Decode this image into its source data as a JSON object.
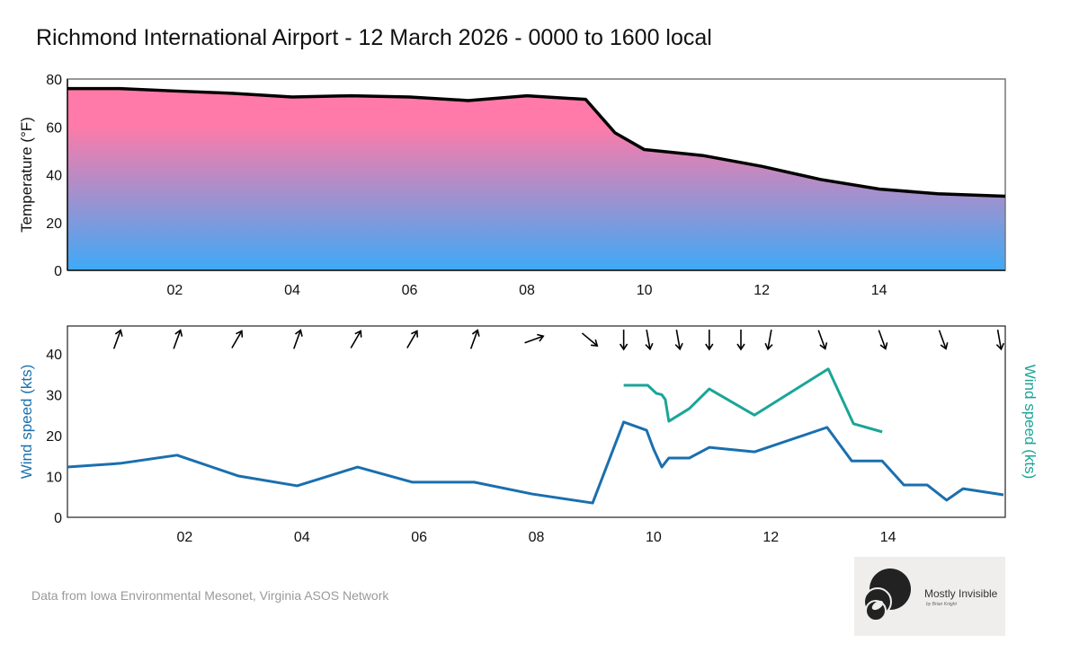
{
  "title": "Richmond International Airport - 12 March 2026 - 0000 to 1600 local",
  "source": "Data from Iowa Environmental Mesonet, Virginia ASOS Network",
  "logo": {
    "name": "Mostly Invisible",
    "byline": "by Brian Knight"
  },
  "colors": {
    "temp_top": "#ff7aa8",
    "temp_bottom": "#3ea9f6",
    "wind": "#1a6fae",
    "gust": "#1aa597"
  },
  "chart_data": [
    {
      "type": "area",
      "ylabel": "Temperature (°F)",
      "xlim": [
        0.17,
        16.15
      ],
      "ylim": [
        0,
        80
      ],
      "yticks": [
        "0",
        "20",
        "40",
        "60",
        "80"
      ],
      "xticks": [
        "02",
        "04",
        "06",
        "08",
        "10",
        "12",
        "14"
      ],
      "series": [
        {
          "x": [
            0.17,
            1.06,
            2,
            3,
            4,
            5,
            6,
            7,
            8,
            9,
            9.5,
            10,
            11,
            12,
            13,
            14,
            15,
            16.15
          ],
          "y": [
            76,
            76,
            75,
            74,
            72.5,
            73,
            72.5,
            71,
            73,
            71.5,
            57.5,
            50.5,
            48,
            43.5,
            38,
            34,
            32,
            31
          ]
        }
      ]
    },
    {
      "type": "line",
      "ylabel": "Wind speed (kts)",
      "ylabel_right": "Wind speed (kts)",
      "xlim": [
        0,
        16
      ],
      "ylim": [
        0,
        46.8
      ],
      "yticks": [
        "0",
        "10",
        "20",
        "30",
        "40"
      ],
      "xticks": [
        "02",
        "04",
        "06",
        "08",
        "10",
        "12",
        "14"
      ],
      "series": [
        {
          "axis": "left",
          "x": [
            0,
            0.9,
            1.87,
            2.92,
            3.92,
            4.95,
            5.88,
            6.94,
            7.93,
            8.96,
            9.49,
            9.88,
            10.0,
            10.14,
            10.26,
            10.61,
            10.95,
            11.72,
            12.96,
            13.38,
            13.9,
            14.27,
            14.67,
            15.0,
            15.28,
            15.97
          ],
          "y": [
            12.3,
            13.2,
            15.2,
            10.1,
            7.7,
            12.3,
            8.6,
            8.6,
            5.7,
            3.5,
            23.3,
            21.3,
            16.7,
            12.3,
            14.5,
            14.5,
            17.1,
            16,
            22,
            13.8,
            13.8,
            7.9,
            7.9,
            4.2,
            7,
            5.5
          ]
        },
        {
          "axis": "right",
          "x": [
            9.49,
            9.9,
            10.05,
            10.14,
            10.2,
            10.26,
            10.61,
            10.95,
            11.72,
            12.98,
            13.41,
            13.9
          ],
          "y": [
            32.3,
            32.3,
            30.3,
            30,
            28.8,
            23.5,
            26.6,
            31.4,
            25,
            36.3,
            22.9,
            20.9
          ]
        }
      ],
      "wind_direction_arrows": {
        "x": [
          0.85,
          1.87,
          2.89,
          3.92,
          4.92,
          5.88,
          6.94,
          7.96,
          8.91,
          9.49,
          9.91,
          10.42,
          10.95,
          11.49,
          11.98,
          12.87,
          13.9,
          14.93,
          15.9
        ],
        "from_deg": [
          200,
          200,
          210,
          200,
          210,
          210,
          200,
          250,
          310,
          360,
          350,
          350,
          360,
          360,
          10,
          340,
          340,
          340,
          350
        ]
      }
    }
  ]
}
